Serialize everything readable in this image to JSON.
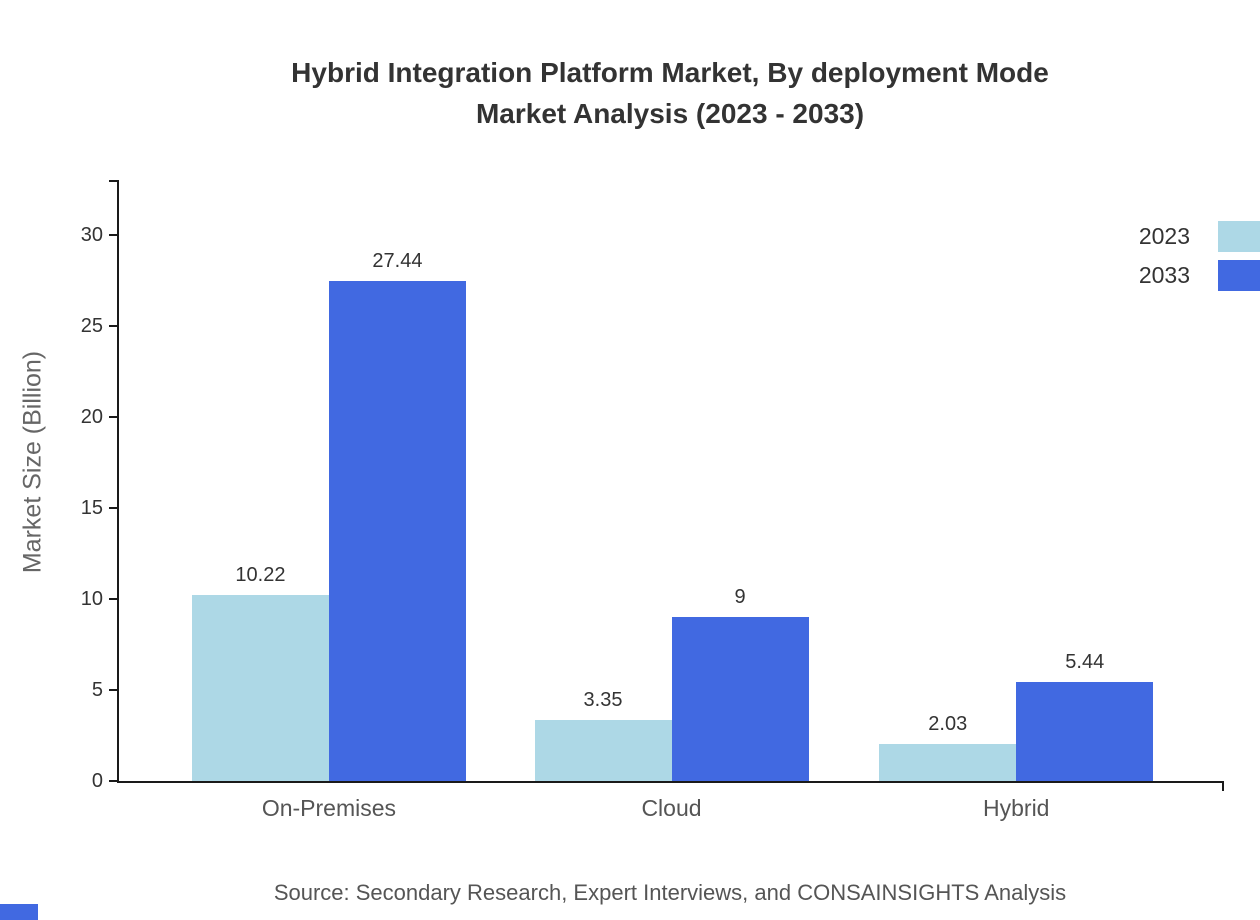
{
  "title": {
    "line1": "Hybrid Integration Platform Market, By deployment Mode",
    "line2": "Market Analysis (2023 - 2033)"
  },
  "source": "Source: Secondary Research, Expert Interviews, and CONSAINSIGHTS Analysis",
  "colors": {
    "series_2023": "#ADD8E6",
    "series_2033": "#4169E1",
    "axis": "#1a1a1a",
    "text_dark": "#333333",
    "text_gray": "#555555"
  },
  "chart_data": {
    "type": "bar",
    "title": "Hybrid Integration Platform Market, By deployment Mode Market Analysis (2023 - 2033)",
    "categories": [
      "On-Premises",
      "Cloud",
      "Hybrid"
    ],
    "series": [
      {
        "name": "2023",
        "color": "#ADD8E6",
        "values": [
          10.22,
          3.35,
          2.03
        ],
        "labels": [
          "10.22",
          "3.35",
          "2.03"
        ]
      },
      {
        "name": "2033",
        "color": "#4169E1",
        "values": [
          27.44,
          9,
          5.44
        ],
        "labels": [
          "27.44",
          "9",
          "5.44"
        ]
      }
    ],
    "xlabel": "",
    "ylabel": "Market Size (Billion)",
    "yticks": [
      0,
      5,
      10,
      15,
      20,
      25,
      30
    ],
    "ylim": [
      0,
      33
    ],
    "grid": false,
    "legend_position": "top-right",
    "value_labels_shown": true
  }
}
